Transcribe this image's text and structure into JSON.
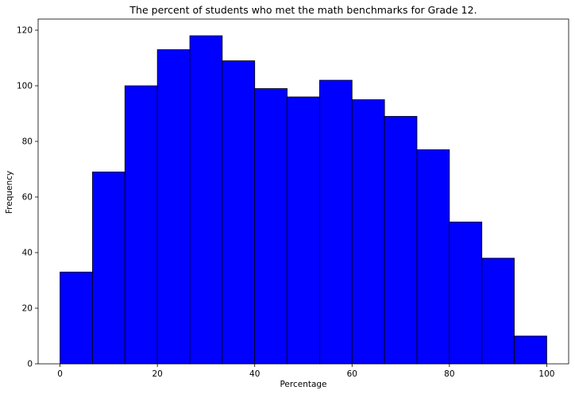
{
  "chart_data": {
    "type": "bar",
    "title": "The percent of students who met the math benchmarks for Grade 12.",
    "xlabel": "Percentage",
    "ylabel": "Frequency",
    "bin_edges": [
      0,
      6.67,
      13.33,
      20,
      26.67,
      33.33,
      40,
      46.67,
      53.33,
      60,
      66.67,
      73.33,
      80,
      86.67,
      93.33,
      100
    ],
    "values": [
      33,
      69,
      100,
      113,
      118,
      109,
      99,
      96,
      102,
      95,
      89,
      77,
      51,
      38,
      10
    ],
    "xlim": [
      -4.5,
      104.5
    ],
    "ylim": [
      0,
      124
    ],
    "xticks": [
      0,
      20,
      40,
      60,
      80,
      100
    ],
    "yticks": [
      0,
      20,
      40,
      60,
      80,
      100,
      120
    ],
    "bar_color": "#0000ff",
    "edge_color": "#000000",
    "grid": false
  }
}
